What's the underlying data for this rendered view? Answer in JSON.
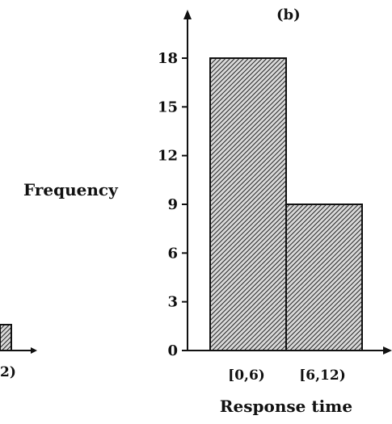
{
  "chart_data": [
    {
      "type": "bar",
      "panel_label": "(b)",
      "categories": [
        "[0,6)",
        "[6,12)"
      ],
      "values": [
        18,
        9
      ],
      "xlabel": "Response time",
      "ylabel": "Frequency",
      "ylim": [
        0,
        18
      ],
      "yticks": [
        "0",
        "3",
        "6",
        "9",
        "12",
        "15",
        "18"
      ],
      "bar_fill": "hatched",
      "grid": false
    },
    {
      "type": "bar",
      "partial": true,
      "visible_category_fragment": "2)"
    }
  ],
  "colors": {
    "ink": "#111111",
    "hatch": "#222222",
    "background": "#ffffff"
  }
}
